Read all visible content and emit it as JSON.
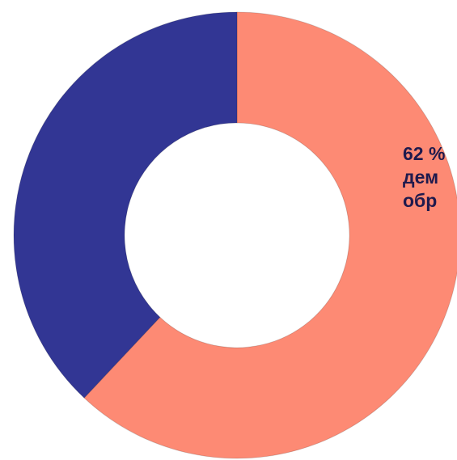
{
  "chart_data": {
    "type": "pie",
    "donut": true,
    "slices": [
      {
        "label": "62 %\nдем\nобр",
        "value": 62,
        "color": "#fd8a74"
      },
      {
        "label": "",
        "value": 38,
        "color": "#323694"
      }
    ],
    "start_angle_deg": 0,
    "direction": "clockwise",
    "title": "",
    "legend": "none"
  }
}
